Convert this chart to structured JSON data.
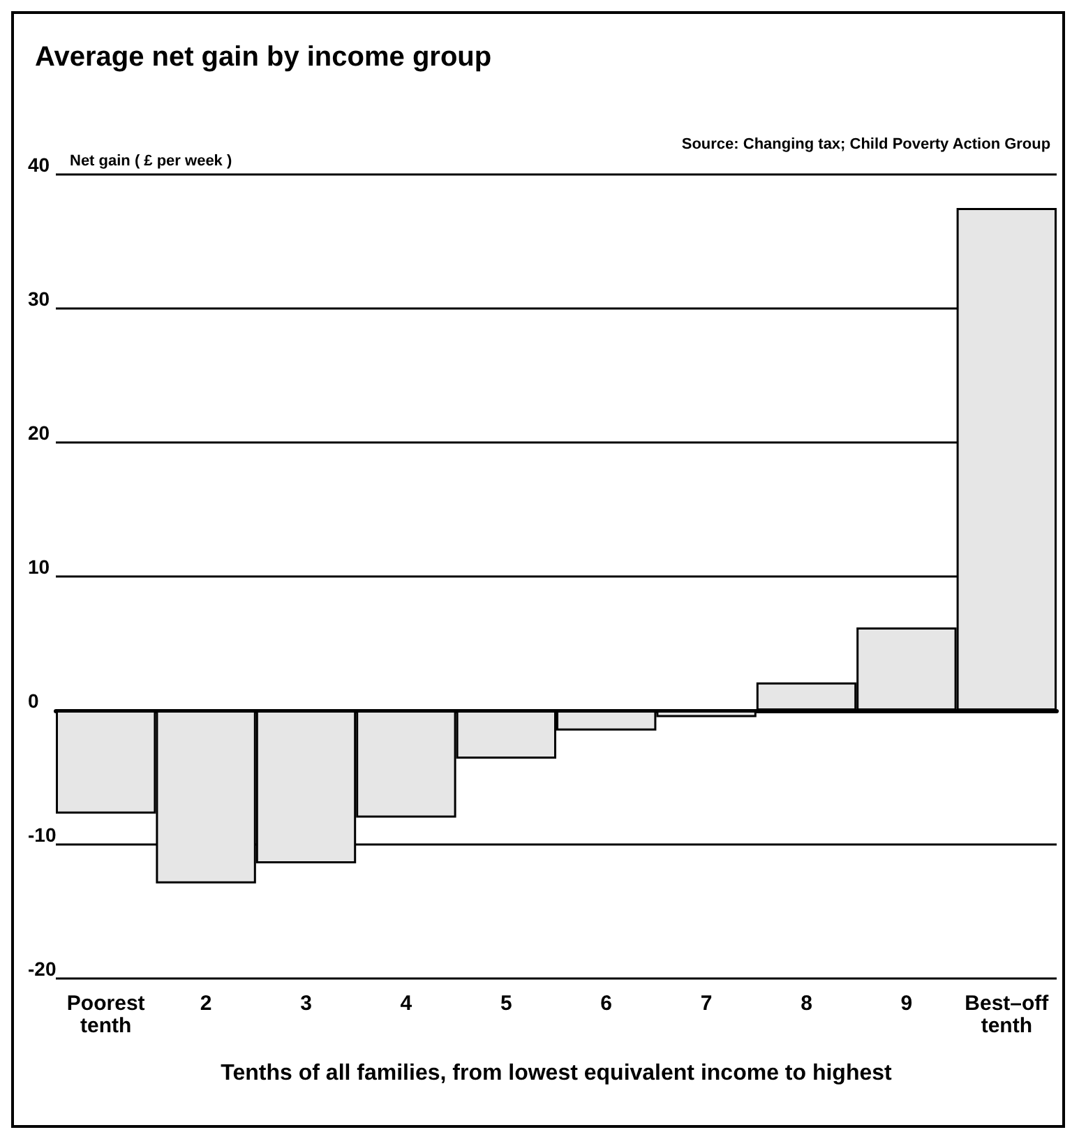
{
  "chart_data": {
    "type": "bar",
    "title": "Average net gain by income group",
    "ylabel": "Net gain ( £ per week )",
    "xlabel": "Tenths of all families, from lowest equivalent income to highest",
    "annotations": [
      "Source: Changing tax; Child Poverty Action Group"
    ],
    "categories": [
      "Poorest\ntenth",
      "2",
      "3",
      "4",
      "5",
      "6",
      "7",
      "8",
      "9",
      "Best–off\ntenth"
    ],
    "values": [
      -7.7,
      -12.9,
      -11.4,
      -8.0,
      -3.6,
      -1.5,
      -0.5,
      2.1,
      6.2,
      37.5
    ],
    "color": "#e6e6e6",
    "ylim": [
      -20,
      40
    ],
    "yticks": [
      -20,
      -10,
      0,
      10,
      20,
      30,
      40
    ],
    "grid": "y"
  }
}
